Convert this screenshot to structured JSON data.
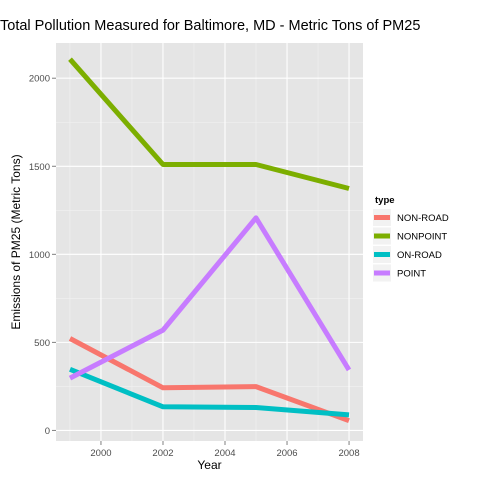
{
  "chart_data": {
    "type": "line",
    "title": "Total Pollution Measured for Baltimore, MD - Metric Tons of PM25",
    "xlabel": "Year",
    "ylabel": "Emissions of PM25 (Metric Tons)",
    "x": [
      1999,
      2002,
      2005,
      2008
    ],
    "x_ticks": [
      2000,
      2002,
      2004,
      2006,
      2008
    ],
    "y_ticks": [
      0,
      500,
      1000,
      1500,
      2000
    ],
    "xlim": [
      1998.55,
      2008.45
    ],
    "ylim": [
      -60,
      2200
    ],
    "grid": true,
    "legend_title": "type",
    "legend_position": "right",
    "series": [
      {
        "name": "NON-ROAD",
        "color": "#F8766D",
        "values": [
          522,
          242,
          249,
          55
        ]
      },
      {
        "name": "NONPOINT",
        "color": "#7CAE00",
        "values": [
          2108,
          1510,
          1510,
          1374
        ]
      },
      {
        "name": "ON-ROAD",
        "color": "#00BFC4",
        "values": [
          347,
          134,
          130,
          88
        ]
      },
      {
        "name": "POINT",
        "color": "#C77CFF",
        "values": [
          297,
          570,
          1207,
          344
        ]
      }
    ],
    "panel_background": "#E5E5E5",
    "grid_color": "#FFFFFF"
  }
}
